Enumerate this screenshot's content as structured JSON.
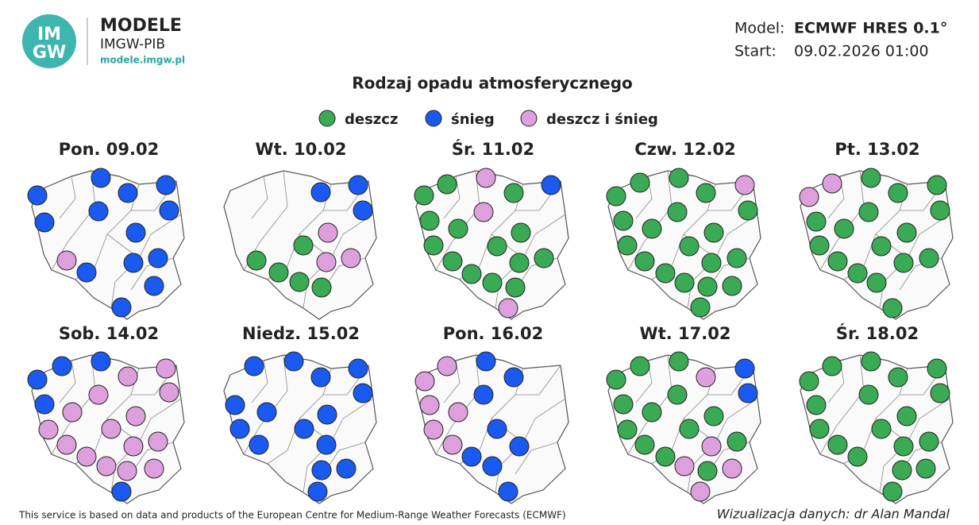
{
  "header": {
    "logo_lines": [
      "IM",
      "GW"
    ],
    "brand": "MODELE",
    "org": "IMGW-PIB",
    "url": "modele.imgw.pl",
    "model_label": "Model:",
    "model": "ECMWF HRES 0.1°",
    "start_label": "Start:",
    "start": "09.02.2026 01:00"
  },
  "title": "Rodzaj opadu atmosferycznego",
  "legend": [
    {
      "label": "deszcz",
      "color": "#3aaa55"
    },
    {
      "label": "śnieg",
      "color": "#1a5af0"
    },
    {
      "label": "deszcz i śnieg",
      "color": "#dda0dd"
    }
  ],
  "panels": [
    {
      "label": "Pon. 09.02",
      "points": [
        1,
        1,
        1,
        1,
        1,
        1,
        1,
        1,
        2,
        1,
        1,
        1,
        1,
        1
      ]
    },
    {
      "label": "Wt. 10.02",
      "points": [
        1,
        1,
        1,
        0,
        2,
        0,
        0,
        2,
        2,
        0,
        0
      ]
    },
    {
      "label": "Śr. 11.02",
      "points": [
        0,
        0,
        2,
        0,
        1,
        0,
        2,
        0,
        0,
        0,
        0,
        0,
        0,
        0,
        0,
        0,
        0,
        2
      ]
    },
    {
      "label": "Czw. 12.02",
      "points": [
        0,
        0,
        0,
        0,
        2,
        0,
        0,
        0,
        0,
        0,
        0,
        0,
        0,
        0,
        0,
        0,
        0,
        0,
        0,
        0
      ]
    },
    {
      "label": "Pt. 13.02",
      "points": [
        2,
        2,
        0,
        0,
        0,
        0,
        0,
        0,
        0,
        0,
        0,
        0,
        0,
        0,
        0,
        0,
        0,
        0
      ]
    },
    {
      "label": "Sob. 14.02",
      "points": [
        1,
        1,
        1,
        2,
        2,
        1,
        2,
        2,
        2,
        2,
        2,
        2,
        2,
        2,
        2,
        2,
        2,
        2,
        2,
        1
      ]
    },
    {
      "label": "Niedz. 15.02",
      "points": [
        1,
        1,
        1,
        1,
        1,
        1,
        1,
        1,
        1,
        1,
        1,
        1,
        1,
        1,
        1
      ]
    },
    {
      "label": "Pon. 16.02",
      "points": [
        2,
        2,
        1,
        1,
        2,
        1,
        2,
        2,
        1,
        2,
        1,
        1,
        1,
        1
      ]
    },
    {
      "label": "Wt. 17.02",
      "points": [
        0,
        0,
        0,
        2,
        1,
        0,
        0,
        1,
        0,
        0,
        0,
        0,
        0,
        2,
        0,
        0,
        2,
        0,
        2,
        2
      ]
    },
    {
      "label": "Śr. 18.02",
      "points": [
        0,
        0,
        0,
        0,
        0,
        0,
        0,
        0,
        0,
        0,
        0,
        0,
        0,
        0,
        0,
        0,
        0,
        0
      ]
    }
  ],
  "footer": {
    "source": "This service is based on data and products of the European Centre for Medium-Range Weather Forecasts (ECMWF)",
    "credit": "Wizualizacja danych: dr Alan Mandal"
  }
}
